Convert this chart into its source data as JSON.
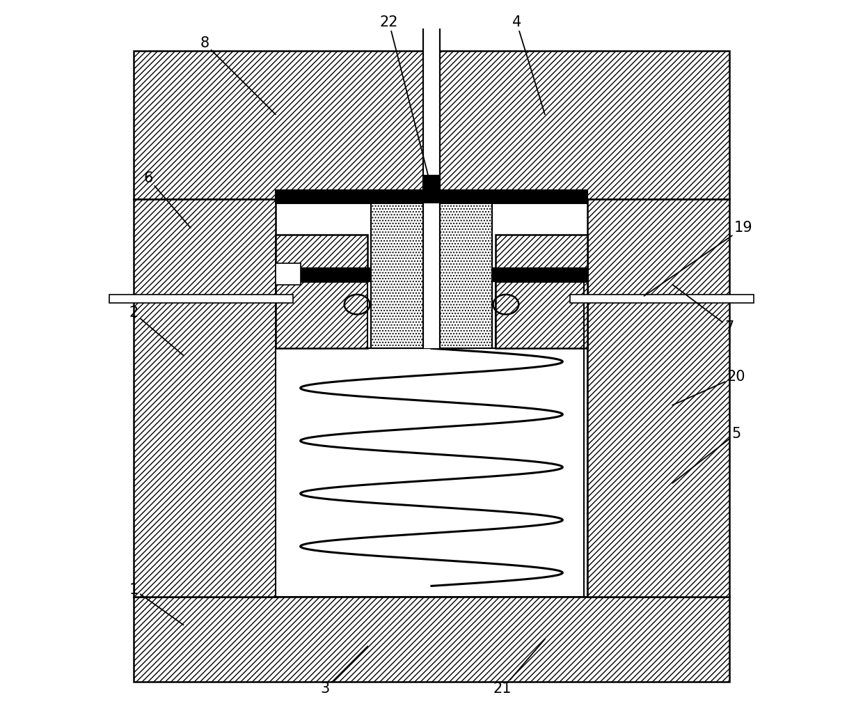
{
  "bg_color": "#ffffff",
  "fig_width": 12.4,
  "fig_height": 10.21,
  "dpi": 100
}
